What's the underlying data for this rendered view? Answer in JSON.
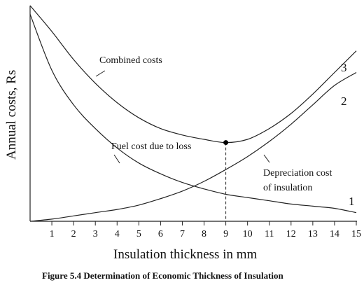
{
  "chart_data": {
    "type": "line",
    "xlabel": "Insulation thickness in mm",
    "ylabel": "Annual costs, Rs",
    "caption": "Figure 5.4 Determination of Economic Thickness of Insulation",
    "x_ticks": [
      "1",
      "2",
      "3",
      "4",
      "5",
      "6",
      "7",
      "8",
      "9",
      "10",
      "11",
      "12",
      "13",
      "14",
      "15"
    ],
    "xlim": [
      0,
      15
    ],
    "ylim": [
      0,
      100
    ],
    "grid": false,
    "legend": "none (curves labelled directly)",
    "series": [
      {
        "name": "1",
        "label": "Fuel cost due to loss",
        "x": [
          0,
          1,
          2,
          3,
          4,
          5,
          6,
          7,
          8,
          9,
          10,
          11,
          12,
          13,
          14,
          15
        ],
        "values": [
          96,
          70,
          54,
          43,
          34,
          27,
          22,
          18,
          15,
          12.5,
          11,
          9.5,
          8,
          7,
          6,
          4
        ]
      },
      {
        "name": "2",
        "label": "Depreciation cost of insulation",
        "x": [
          0,
          1,
          2,
          3,
          4,
          5,
          6,
          7,
          8,
          9,
          10,
          11,
          12,
          13,
          14,
          15
        ],
        "values": [
          0,
          1,
          2.5,
          4,
          5.5,
          7.5,
          10.5,
          14,
          18.5,
          24,
          30,
          37,
          45,
          54,
          63,
          69
        ]
      },
      {
        "name": "3",
        "label": "Combined costs",
        "x": [
          0,
          1,
          2,
          3,
          4,
          5,
          6,
          7,
          8,
          9,
          10,
          11,
          12,
          13,
          14,
          15
        ],
        "values": [
          100,
          88,
          75,
          64,
          55,
          48,
          43,
          40,
          38,
          36.5,
          38,
          43,
          50,
          59,
          69,
          79
        ]
      }
    ],
    "optimum": {
      "x": 9,
      "y": 36.5
    },
    "annotations": {
      "combined": "Combined costs",
      "fuel": "Fuel cost due to loss",
      "depreciation_line1": "Depreciation cost",
      "depreciation_line2": "of insulation"
    }
  }
}
